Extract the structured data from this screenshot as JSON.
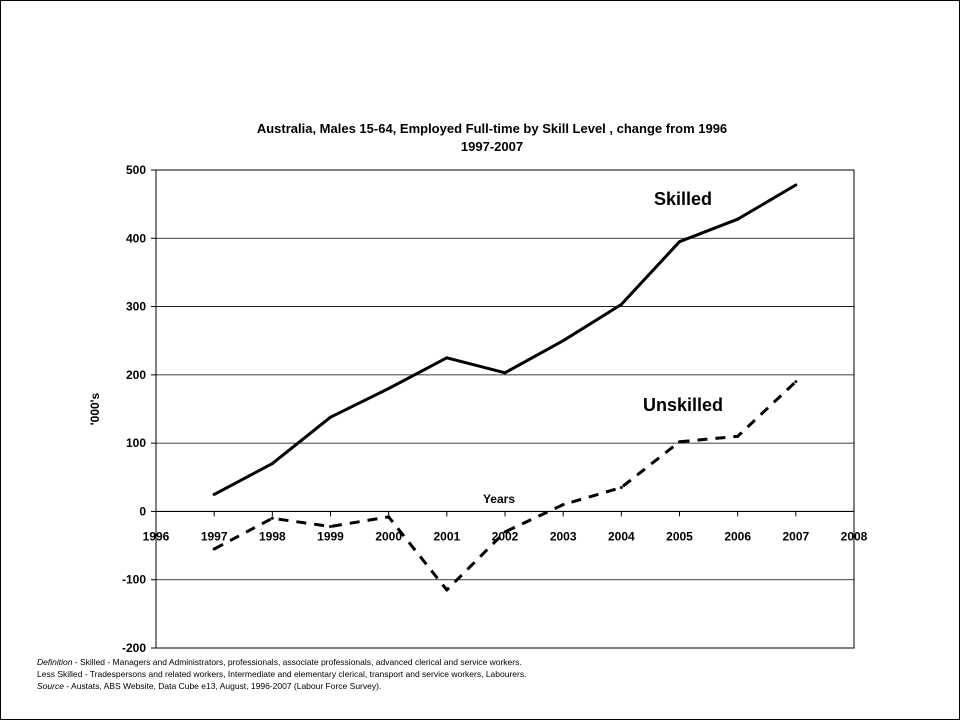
{
  "chart_data": {
    "type": "line",
    "title": "Australia, Males 15-64, Employed Full-time by Skill Level , change from 1996",
    "subtitle": "1997-2007",
    "xlabel": "Years",
    "ylabel": "'000's",
    "xlim": [
      1996,
      2008
    ],
    "ylim": [
      -200,
      500
    ],
    "xticks": [
      "1996",
      "1997",
      "1998",
      "1999",
      "2000",
      "2001",
      "2002",
      "2003",
      "2004",
      "2005",
      "2006",
      "2007",
      "2008"
    ],
    "yticks": [
      "500",
      "400",
      "300",
      "200",
      "100",
      "0",
      "-100",
      "-200"
    ],
    "grid": "horizontal",
    "x": [
      1997,
      1998,
      1999,
      2000,
      2001,
      2002,
      2003,
      2004,
      2005,
      2006,
      2007
    ],
    "series": [
      {
        "name": "Skilled",
        "style": "solid",
        "color": "#000000",
        "values": [
          25,
          70,
          138,
          180,
          225,
          203,
          250,
          303,
          395,
          428,
          478
        ]
      },
      {
        "name": "Unskilled",
        "style": "dashed",
        "color": "#000000",
        "values": [
          -55,
          -10,
          -22,
          -8,
          -115,
          -30,
          10,
          35,
          102,
          110,
          190
        ]
      }
    ]
  },
  "notes": {
    "definition_label": "Definition",
    "definition_text": " - Skilled - Managers and Administrators, professionals, associate professionals, advanced clerical and service workers.",
    "less_skilled_text": "Less Skilled - Tradespersons and related workers, Intermediate and elementary clerical, transport and service workers, Labourers.",
    "source_label": "Source",
    "source_text": " - Austats, ABS Website, Data Cube e13, August, 1996-2007 (Labour Force Survey)."
  }
}
